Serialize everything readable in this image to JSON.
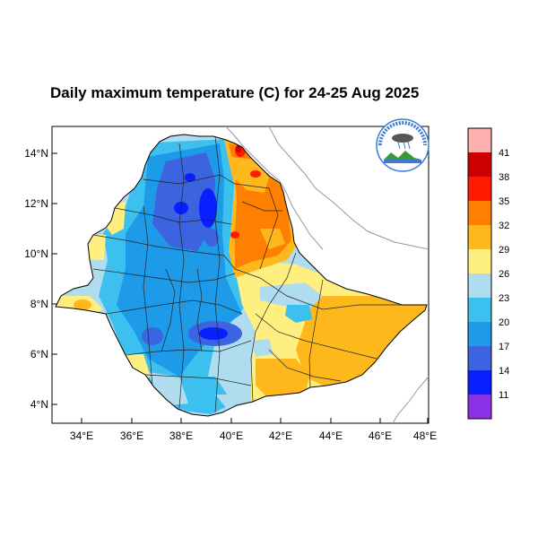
{
  "title": "Daily maximum temperature (C) for 24-25 Aug 2025",
  "map": {
    "lat_ticks": [
      "14°N",
      "12°N",
      "10°N",
      "8°N",
      "6°N",
      "4°N"
    ],
    "lon_ticks": [
      "34°E",
      "36°E",
      "38°E",
      "40°E",
      "42°E",
      "44°E",
      "46°E",
      "48°E"
    ],
    "lon_range": [
      33,
      48.2
    ],
    "lat_range": [
      3.2,
      15
    ]
  },
  "colorbar": {
    "labels": [
      "41",
      "38",
      "35",
      "32",
      "29",
      "26",
      "23",
      "20",
      "17",
      "14",
      "11"
    ],
    "colors": [
      "#ffb1b1",
      "#cc0000",
      "#ff1a00",
      "#ff8000",
      "#ffb81c",
      "#ffef80",
      "#b0dcf0",
      "#3cc0f0",
      "#1e9be8",
      "#3c64e0",
      "#0a1eff",
      "#8c32e6"
    ]
  },
  "logo": {
    "header_text": "ኢትዮጵያ ሚቲዎሮሎጂ ኢንስቲትዩት",
    "footer_text": "Ethiopian Meteorological Institute"
  }
}
